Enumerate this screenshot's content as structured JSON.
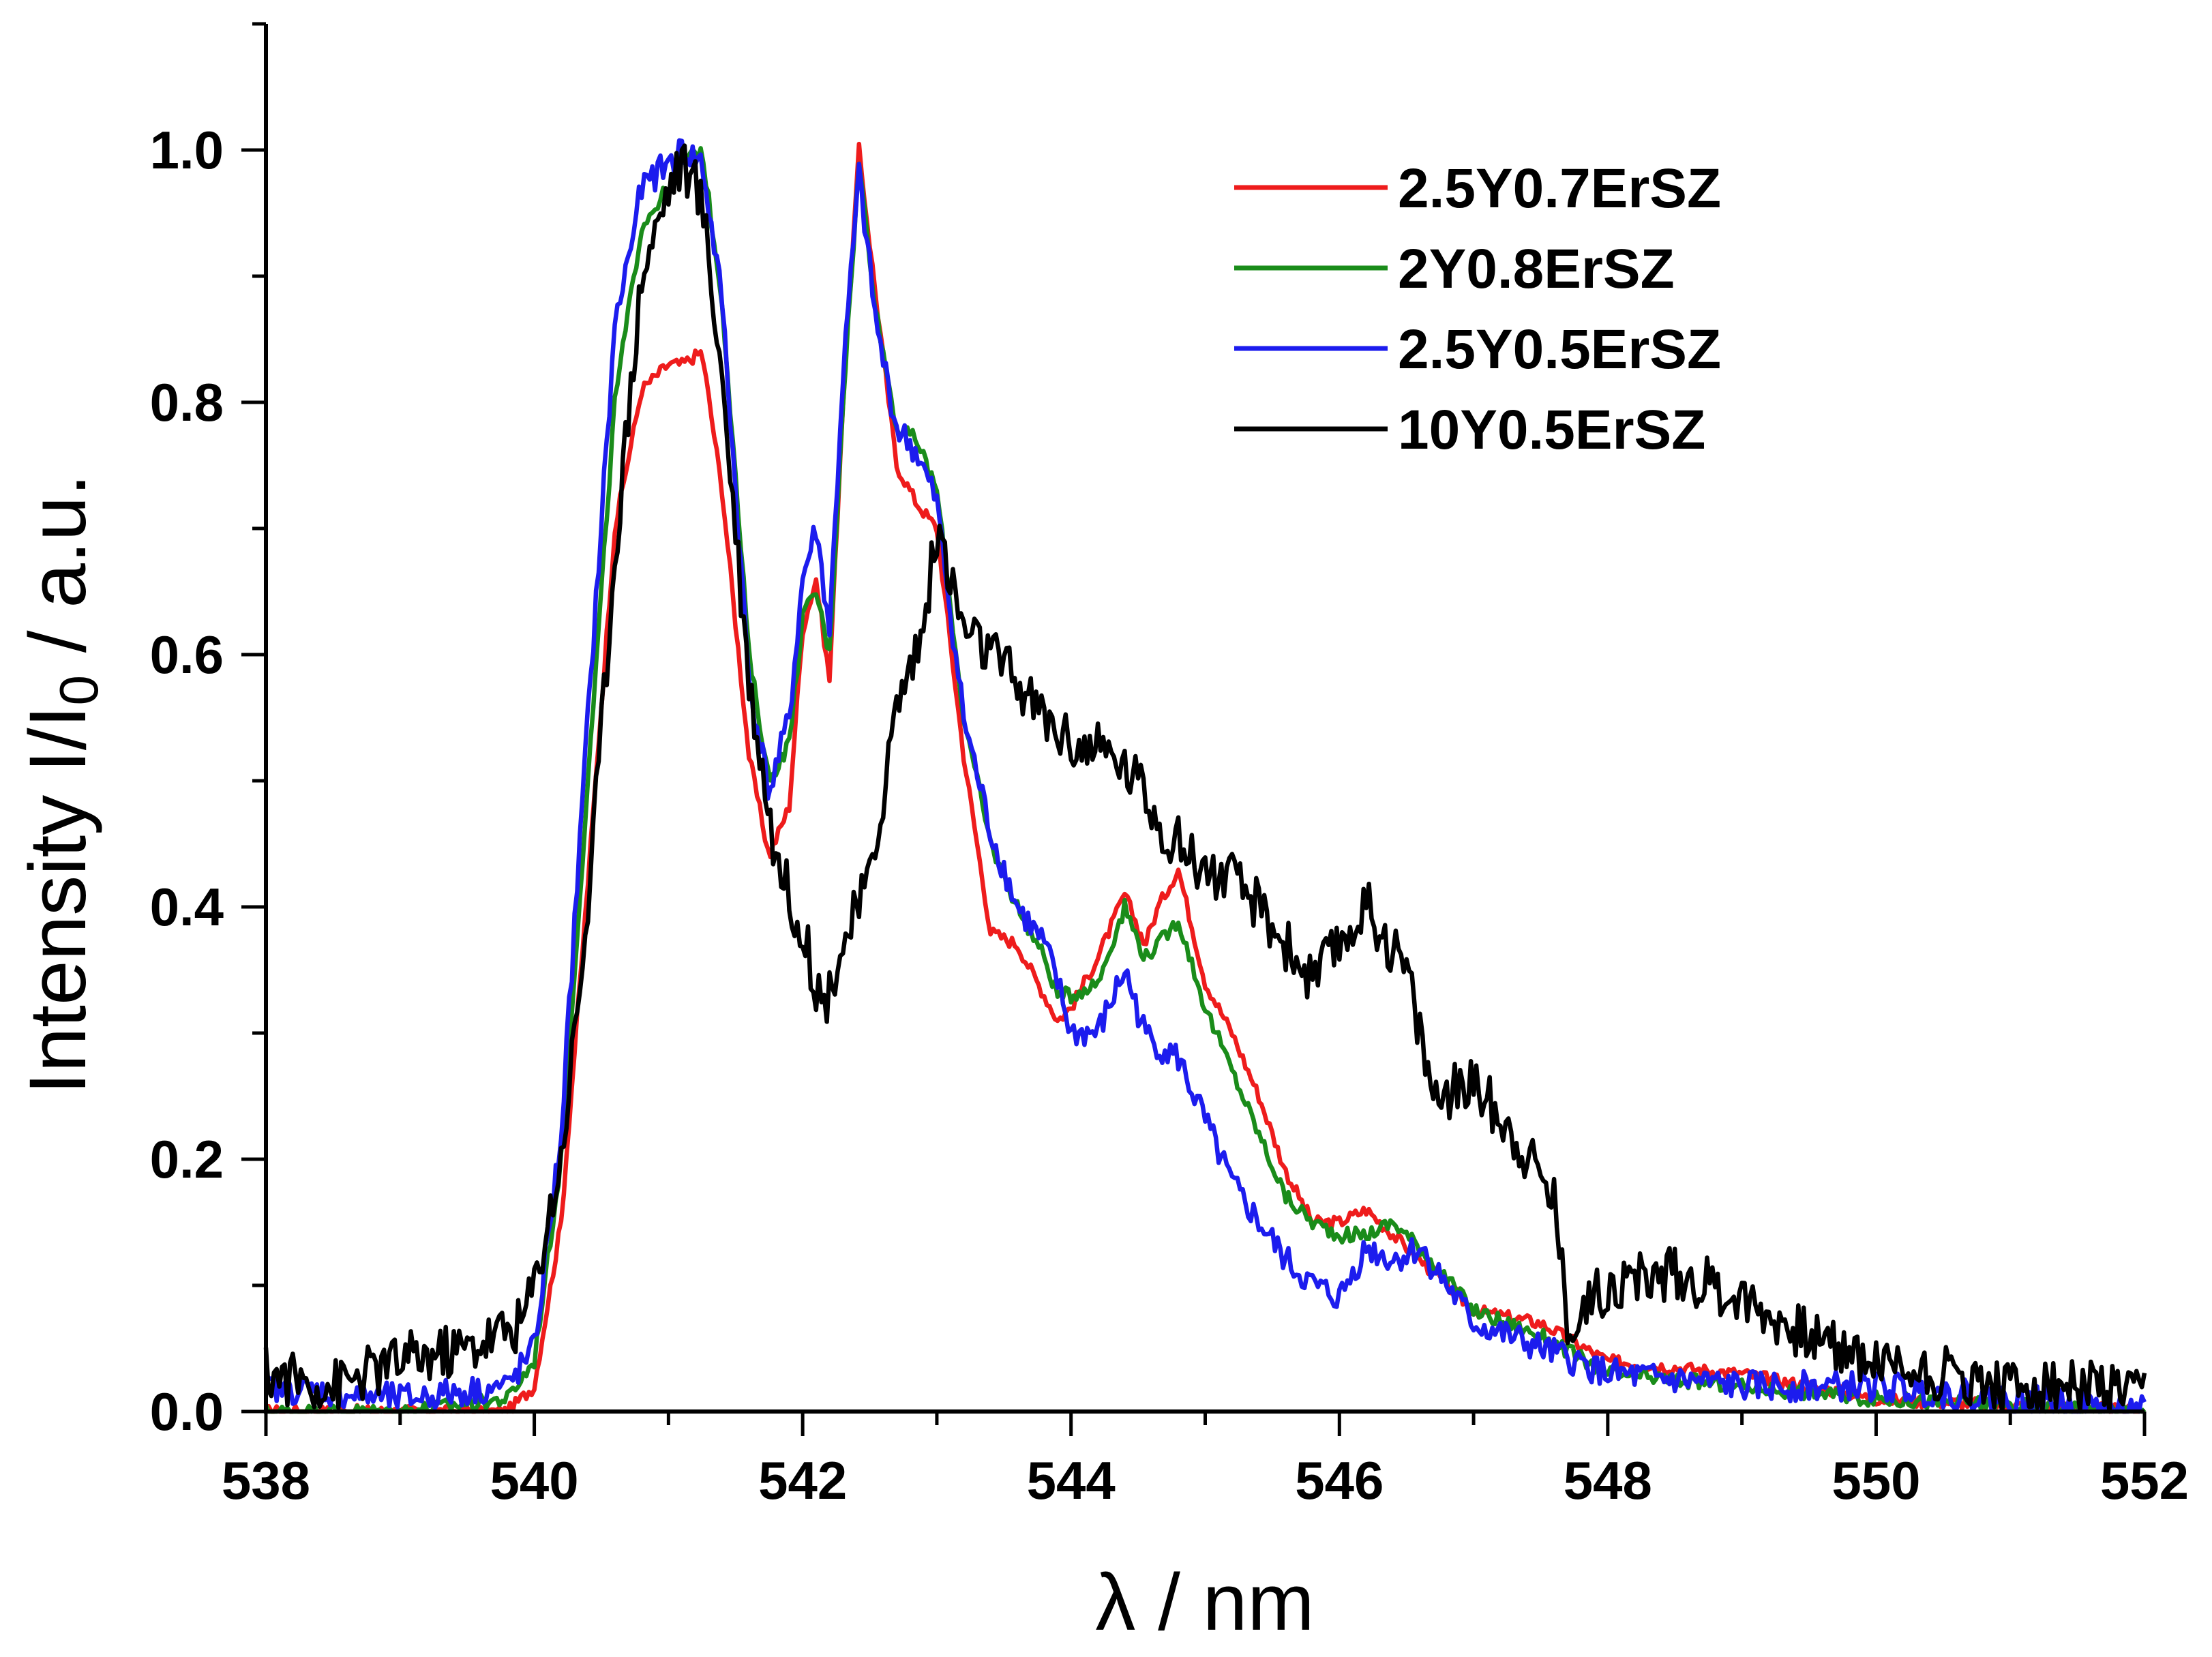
{
  "chart_data": {
    "type": "line",
    "title": "",
    "xlabel": "λ / nm",
    "ylabel_main": "Intensity I/I",
    "ylabel_sub": "0",
    "ylabel_tail": " / a.u.",
    "xlim": [
      538,
      552
    ],
    "ylim": [
      0,
      1.1
    ],
    "xticks": [
      538,
      540,
      542,
      544,
      546,
      548,
      550,
      552
    ],
    "xtick_labels": [
      "538",
      "540",
      "542",
      "544",
      "546",
      "548",
      "550",
      "552"
    ],
    "yticks": [
      0,
      0.2,
      0.4,
      0.6,
      0.8,
      1.0
    ],
    "ytick_labels": [
      "0.0",
      "0.2",
      "0.4",
      "0.6",
      "0.8",
      "1.0"
    ],
    "legend_position": "top-right",
    "grid": false,
    "series": [
      {
        "name": "2.5Y0.7ErSZ",
        "color": "#ee1c1c",
        "x": [
          538.0,
          539.0,
          539.8,
          540.0,
          540.2,
          540.4,
          540.6,
          540.8,
          541.0,
          541.1,
          541.25,
          541.4,
          541.6,
          541.75,
          541.9,
          542.0,
          542.1,
          542.2,
          542.3,
          542.42,
          542.55,
          542.7,
          542.85,
          543.0,
          543.2,
          543.4,
          543.6,
          543.8,
          543.9,
          544.0,
          544.2,
          544.4,
          544.55,
          544.65,
          544.8,
          545.0,
          545.2,
          545.4,
          545.6,
          545.8,
          546.0,
          546.2,
          546.4,
          546.6,
          547.0,
          547.5,
          548.0,
          549.0,
          550.0,
          551.0,
          552.0
        ],
        "y": [
          0.0,
          0.0,
          0.0,
          0.02,
          0.15,
          0.42,
          0.7,
          0.81,
          0.83,
          0.83,
          0.84,
          0.73,
          0.52,
          0.44,
          0.48,
          0.62,
          0.66,
          0.58,
          0.8,
          1.0,
          0.88,
          0.75,
          0.72,
          0.7,
          0.52,
          0.38,
          0.37,
          0.33,
          0.31,
          0.32,
          0.36,
          0.41,
          0.37,
          0.4,
          0.43,
          0.34,
          0.3,
          0.25,
          0.19,
          0.15,
          0.15,
          0.16,
          0.14,
          0.12,
          0.08,
          0.07,
          0.04,
          0.03,
          0.01,
          0.005,
          0.0
        ]
      },
      {
        "name": "2Y0.8ErSZ",
        "color": "#1a8c1a",
        "x": [
          538.0,
          539.0,
          539.8,
          540.0,
          540.2,
          540.4,
          540.6,
          540.8,
          541.0,
          541.1,
          541.25,
          541.4,
          541.6,
          541.75,
          541.9,
          542.0,
          542.1,
          542.2,
          542.3,
          542.42,
          542.55,
          542.7,
          542.85,
          543.0,
          543.2,
          543.4,
          543.6,
          543.8,
          543.9,
          544.0,
          544.2,
          544.4,
          544.55,
          544.65,
          544.8,
          545.0,
          545.2,
          545.4,
          545.6,
          545.8,
          546.0,
          546.2,
          546.4,
          546.6,
          547.0,
          547.5,
          548.0,
          549.0,
          550.0,
          551.0,
          552.0
        ],
        "y": [
          0.0,
          0.0,
          0.01,
          0.04,
          0.2,
          0.5,
          0.8,
          0.94,
          0.97,
          0.99,
          1.0,
          0.88,
          0.6,
          0.5,
          0.53,
          0.63,
          0.65,
          0.6,
          0.8,
          0.99,
          0.87,
          0.78,
          0.77,
          0.73,
          0.55,
          0.45,
          0.4,
          0.36,
          0.33,
          0.33,
          0.34,
          0.4,
          0.36,
          0.37,
          0.39,
          0.32,
          0.27,
          0.22,
          0.17,
          0.15,
          0.14,
          0.14,
          0.15,
          0.13,
          0.08,
          0.06,
          0.03,
          0.02,
          0.01,
          0.005,
          0.0
        ]
      },
      {
        "name": "2.5Y0.5ErSZ",
        "color": "#1c1cee",
        "x": [
          538.0,
          539.0,
          539.8,
          540.0,
          540.2,
          540.4,
          540.6,
          540.8,
          541.0,
          541.1,
          541.25,
          541.4,
          541.6,
          541.75,
          541.9,
          542.0,
          542.1,
          542.2,
          542.3,
          542.42,
          542.55,
          542.7,
          542.85,
          543.0,
          543.2,
          543.4,
          543.6,
          543.8,
          543.9,
          544.0,
          544.2,
          544.4,
          544.55,
          544.65,
          544.8,
          545.0,
          545.2,
          545.4,
          545.6,
          545.8,
          546.0,
          546.2,
          546.4,
          546.6,
          547.0,
          547.5,
          548.0,
          549.0,
          550.0,
          551.0,
          552.0
        ],
        "y": [
          0.02,
          0.01,
          0.02,
          0.05,
          0.22,
          0.55,
          0.86,
          0.97,
          0.99,
          1.0,
          0.99,
          0.88,
          0.58,
          0.49,
          0.55,
          0.66,
          0.7,
          0.62,
          0.82,
          0.98,
          0.86,
          0.78,
          0.76,
          0.72,
          0.55,
          0.46,
          0.4,
          0.37,
          0.34,
          0.3,
          0.3,
          0.35,
          0.3,
          0.29,
          0.28,
          0.23,
          0.18,
          0.15,
          0.12,
          0.1,
          0.09,
          0.13,
          0.12,
          0.13,
          0.07,
          0.05,
          0.03,
          0.02,
          0.02,
          0.01,
          0.0
        ]
      },
      {
        "name": "10Y0.5ErSZ",
        "color": "#000000",
        "x": [
          538.0,
          538.5,
          539.0,
          539.5,
          539.9,
          540.0,
          540.2,
          540.4,
          540.6,
          540.8,
          541.0,
          541.1,
          541.25,
          541.4,
          541.6,
          541.8,
          542.0,
          542.15,
          542.3,
          542.5,
          542.7,
          542.9,
          543.0,
          543.2,
          543.5,
          543.8,
          544.0,
          544.3,
          544.5,
          544.7,
          545.0,
          545.2,
          545.4,
          545.6,
          545.8,
          546.0,
          546.2,
          546.5,
          546.7,
          547.0,
          547.3,
          547.6,
          547.7,
          548.0,
          548.5,
          549.0,
          549.5,
          550.0,
          550.5,
          551.0,
          551.5,
          552.0
        ],
        "y": [
          0.03,
          0.02,
          0.04,
          0.05,
          0.07,
          0.1,
          0.2,
          0.4,
          0.68,
          0.9,
          0.97,
          0.99,
          0.96,
          0.82,
          0.58,
          0.44,
          0.38,
          0.32,
          0.37,
          0.42,
          0.56,
          0.62,
          0.7,
          0.62,
          0.59,
          0.55,
          0.53,
          0.52,
          0.5,
          0.46,
          0.43,
          0.42,
          0.4,
          0.37,
          0.34,
          0.37,
          0.4,
          0.35,
          0.25,
          0.26,
          0.22,
          0.17,
          0.07,
          0.1,
          0.11,
          0.09,
          0.06,
          0.04,
          0.03,
          0.02,
          0.02,
          0.01
        ]
      }
    ]
  }
}
